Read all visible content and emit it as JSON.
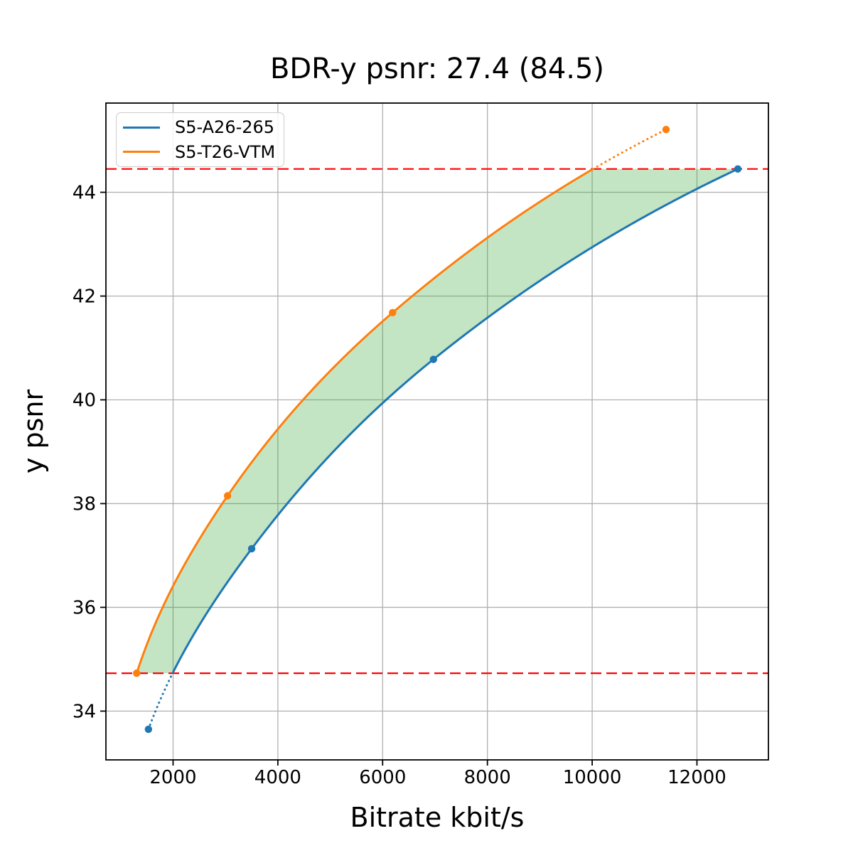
{
  "chart_data": {
    "type": "line",
    "title": "BDR-y psnr: 27.4 (84.5)",
    "xlabel": "Bitrate kbit/s",
    "ylabel": "y psnr",
    "xlim": [
      718,
      13364
    ],
    "ylim": [
      33.06,
      45.72
    ],
    "x_ticks": [
      2000,
      4000,
      6000,
      8000,
      10000,
      12000
    ],
    "y_ticks": [
      34,
      36,
      38,
      40,
      42,
      44
    ],
    "grid": true,
    "grid_color": "#b0b0b0",
    "legend_position": "upper-left",
    "interpolation": "pchip-log-x",
    "series": [
      {
        "name": "S5-A26-265",
        "color": "#1f77b4",
        "points": [
          [
            1530,
            33.65
          ],
          [
            3500,
            37.13
          ],
          [
            6970,
            40.78
          ],
          [
            12780,
            44.45
          ]
        ]
      },
      {
        "name": "S5-T26-VTM",
        "color": "#ff7f0e",
        "points": [
          [
            1305,
            34.73
          ],
          [
            3040,
            38.15
          ],
          [
            6190,
            41.68
          ],
          [
            11410,
            45.21
          ]
        ]
      }
    ],
    "overlap_bounds": {
      "lower": 34.73,
      "upper": 44.45,
      "line_color": "#ff0000",
      "line_style": "dashed"
    },
    "shade": {
      "color": "#2ca02c",
      "opacity": 0.28
    }
  }
}
